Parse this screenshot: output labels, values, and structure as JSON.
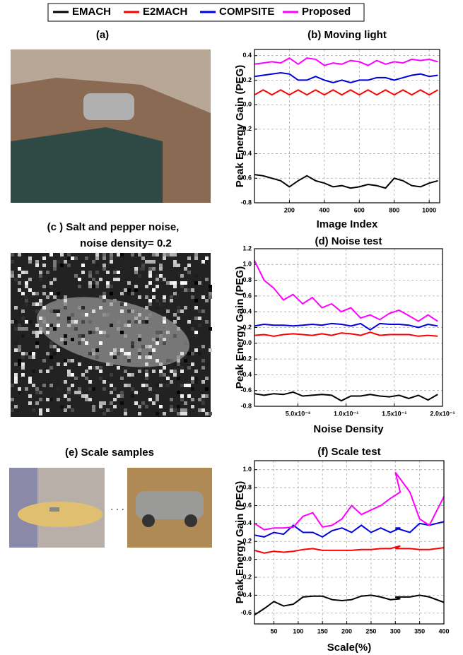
{
  "legend": [
    {
      "name": "EMACH",
      "color": "#000000"
    },
    {
      "name": "E2MACH",
      "color": "#ff0000"
    },
    {
      "name": "COMPSITE",
      "color": "#0000dd"
    },
    {
      "name": "Proposed",
      "color": "#ff00ff"
    }
  ],
  "panels": {
    "a": "(a)",
    "c_line1": "(c ) Salt and pepper noise,",
    "c_line2": "noise density= 0.2",
    "e": "(e) Scale samples",
    "e_dots": ". . ."
  },
  "chart_data": [
    {
      "type": "line",
      "title": "(b) Moving light",
      "x_label": "Image Index",
      "y_label": "Peak Energy Gain (PEG)",
      "xlim": [
        0,
        1060
      ],
      "xticks": [
        200,
        400,
        600,
        800,
        1000
      ],
      "ylim": [
        -0.8,
        0.45
      ],
      "yticks": [
        -0.8,
        -0.6,
        -0.4,
        -0.2,
        {
          "value": 0,
          "label": "0.0"
        },
        0.2,
        0.4
      ],
      "grid": true,
      "x": [
        0,
        50,
        100,
        150,
        200,
        250,
        300,
        350,
        400,
        450,
        500,
        550,
        600,
        650,
        700,
        750,
        800,
        850,
        900,
        950,
        1000,
        1050
      ],
      "series": [
        {
          "values": [
            -0.57,
            -0.58,
            -0.6,
            -0.62,
            -0.67,
            -0.62,
            -0.58,
            -0.62,
            -0.64,
            -0.67,
            -0.66,
            -0.68,
            -0.67,
            -0.65,
            -0.66,
            -0.68,
            -0.6,
            -0.62,
            -0.66,
            -0.67,
            -0.64,
            -0.62
          ]
        },
        {
          "values": [
            0.08,
            0.12,
            0.08,
            0.12,
            0.08,
            0.12,
            0.08,
            0.12,
            0.08,
            0.12,
            0.08,
            0.12,
            0.08,
            0.12,
            0.08,
            0.12,
            0.08,
            0.12,
            0.08,
            0.12,
            0.08,
            0.12
          ]
        },
        {
          "values": [
            0.23,
            0.24,
            0.25,
            0.26,
            0.25,
            0.2,
            0.2,
            0.23,
            0.2,
            0.18,
            0.2,
            0.18,
            0.2,
            0.2,
            0.22,
            0.22,
            0.2,
            0.22,
            0.24,
            0.25,
            0.23,
            0.24
          ]
        },
        {
          "values": [
            0.33,
            0.34,
            0.35,
            0.34,
            0.38,
            0.33,
            0.38,
            0.37,
            0.32,
            0.34,
            0.33,
            0.36,
            0.35,
            0.32,
            0.36,
            0.33,
            0.35,
            0.34,
            0.37,
            0.36,
            0.37,
            0.35
          ]
        }
      ]
    },
    {
      "type": "line",
      "title": "(d) Noise test",
      "x_label": "Noise Density",
      "y_label": "Peak Energy Gain (PEG)",
      "xlim": [
        0.005,
        0.2
      ],
      "xticks": [
        {
          "value": 0.05,
          "label": "5.0x10⁻²"
        },
        {
          "value": 0.1,
          "label": "1.0x10⁻¹"
        },
        {
          "value": 0.15,
          "label": "1.5x10⁻¹"
        },
        {
          "value": 0.2,
          "label": "2.0x10⁻¹"
        }
      ],
      "ylim": [
        -0.8,
        1.2
      ],
      "yticks": [
        -0.8,
        -0.6,
        -0.4,
        -0.2,
        {
          "value": 0,
          "label": "0.0"
        },
        0.2,
        0.4,
        0.6,
        0.8,
        {
          "value": 1,
          "label": "1.0"
        },
        1.2
      ],
      "grid": true,
      "x": [
        0.005,
        0.015,
        0.025,
        0.035,
        0.045,
        0.055,
        0.065,
        0.075,
        0.085,
        0.095,
        0.105,
        0.115,
        0.125,
        0.135,
        0.145,
        0.155,
        0.165,
        0.175,
        0.185,
        0.195
      ],
      "series": [
        {
          "values": [
            -0.64,
            -0.66,
            -0.64,
            -0.65,
            -0.62,
            -0.67,
            -0.66,
            -0.65,
            -0.66,
            -0.73,
            -0.67,
            -0.67,
            -0.65,
            -0.67,
            -0.68,
            -0.66,
            -0.7,
            -0.66,
            -0.72,
            -0.65
          ]
        },
        {
          "values": [
            0.1,
            0.11,
            0.09,
            0.11,
            0.12,
            0.11,
            0.1,
            0.12,
            0.1,
            0.13,
            0.12,
            0.1,
            0.14,
            0.1,
            0.11,
            0.11,
            0.11,
            0.09,
            0.1,
            0.09
          ]
        },
        {
          "values": [
            0.22,
            0.24,
            0.23,
            0.23,
            0.22,
            0.23,
            0.24,
            0.23,
            0.25,
            0.24,
            0.22,
            0.25,
            0.17,
            0.25,
            0.24,
            0.24,
            0.23,
            0.2,
            0.24,
            0.22
          ]
        },
        {
          "values": [
            1.05,
            0.8,
            0.7,
            0.55,
            0.62,
            0.5,
            0.58,
            0.45,
            0.5,
            0.4,
            0.45,
            0.32,
            0.36,
            0.3,
            0.38,
            0.42,
            0.35,
            0.28,
            0.36,
            0.28
          ]
        }
      ]
    },
    {
      "type": "line",
      "title": "(f) Scale test",
      "x_label": "Scale(%)",
      "y_label": "Peak Energy Gain (PEG)",
      "xlim": [
        10,
        400
      ],
      "xticks": [
        50,
        100,
        150,
        200,
        250,
        300,
        350,
        400
      ],
      "ylim": [
        -0.72,
        1.1
      ],
      "yticks": [
        -0.6,
        -0.4,
        -0.2,
        {
          "value": 0,
          "label": "0.0"
        },
        0.2,
        0.4,
        0.6,
        0.8,
        {
          "value": 1,
          "label": "1.0"
        }
      ],
      "grid": true,
      "x": [
        10,
        30,
        50,
        70,
        90,
        110,
        130,
        150,
        170,
        190,
        210,
        230,
        250,
        270,
        290,
        310,
        300,
        330,
        350,
        370,
        400
      ],
      "series": [
        {
          "values": [
            -0.62,
            -0.55,
            -0.47,
            -0.52,
            -0.5,
            -0.42,
            -0.41,
            -0.41,
            -0.45,
            -0.46,
            -0.45,
            -0.41,
            -0.4,
            -0.42,
            -0.45,
            -0.44,
            -0.42,
            -0.42,
            -0.4,
            -0.42,
            -0.48
          ]
        },
        {
          "values": [
            0.1,
            0.07,
            0.09,
            0.08,
            0.09,
            0.11,
            0.12,
            0.1,
            0.1,
            0.1,
            0.1,
            0.11,
            0.11,
            0.12,
            0.12,
            0.15,
            0.12,
            0.12,
            0.11,
            0.11,
            0.13
          ]
        },
        {
          "values": [
            0.27,
            0.25,
            0.3,
            0.28,
            0.38,
            0.3,
            0.3,
            0.25,
            0.32,
            0.35,
            0.3,
            0.38,
            0.3,
            0.35,
            0.3,
            0.35,
            0.35,
            0.3,
            0.4,
            0.38,
            0.42
          ]
        },
        {
          "values": [
            0.4,
            0.33,
            0.35,
            0.35,
            0.36,
            0.48,
            0.52,
            0.36,
            0.38,
            0.45,
            0.6,
            0.5,
            0.55,
            0.6,
            0.68,
            0.75,
            0.97,
            0.75,
            0.45,
            0.38,
            0.7
          ]
        }
      ]
    }
  ]
}
